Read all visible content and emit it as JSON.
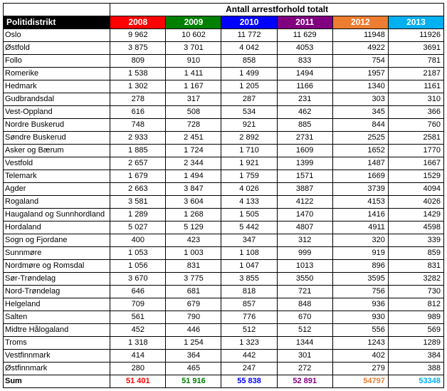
{
  "table": {
    "super_header": "Antall arrestforhold totalt",
    "row_header_title": "Politidistrikt",
    "row_header_bg": "#000000",
    "sum_label": "Sum",
    "background_color": "#ffffff",
    "border_color": "#000000",
    "font_size_body": 11,
    "font_size_header": 12,
    "years": [
      {
        "label": "2008",
        "bg": "#ff0000",
        "sum": "51 401",
        "sum_color": "#ff0000",
        "align": "center"
      },
      {
        "label": "2009",
        "bg": "#008000",
        "sum": "51 916",
        "sum_color": "#008000",
        "align": "center"
      },
      {
        "label": "2010",
        "bg": "#0000ff",
        "sum": "55 838",
        "sum_color": "#0000ff",
        "align": "center"
      },
      {
        "label": "2011",
        "bg": "#800080",
        "sum": "52 891",
        "sum_color": "#800080",
        "align": "center"
      },
      {
        "label": "2012",
        "bg": "#ed7d31",
        "sum": "54797",
        "sum_color": "#ed7d31",
        "align": "right"
      },
      {
        "label": "2013",
        "bg": "#00b0f0",
        "sum": "53348",
        "sum_color": "#00b0f0",
        "align": "right"
      }
    ],
    "rows": [
      {
        "district": "Oslo",
        "values": [
          "9 962",
          "10 602",
          "11 772",
          "11 629",
          "11948",
          "11926"
        ]
      },
      {
        "district": "Østfold",
        "values": [
          "3 875",
          "3 701",
          "4 042",
          "4053",
          "4922",
          "3691"
        ]
      },
      {
        "district": "Follo",
        "values": [
          "809",
          "910",
          "858",
          "833",
          "754",
          "781"
        ]
      },
      {
        "district": "Romerike",
        "values": [
          "1 538",
          "1 411",
          "1 499",
          "1494",
          "1957",
          "2187"
        ]
      },
      {
        "district": "Hedmark",
        "values": [
          "1 302",
          "1 167",
          "1 205",
          "1166",
          "1340",
          "1161"
        ]
      },
      {
        "district": "Gudbrandsdal",
        "values": [
          "278",
          "317",
          "287",
          "231",
          "303",
          "310"
        ]
      },
      {
        "district": "Vest-Oppland",
        "values": [
          "616",
          "508",
          "534",
          "462",
          "345",
          "366"
        ]
      },
      {
        "district": "Nordre Buskerud",
        "values": [
          "748",
          "728",
          "921",
          "885",
          "844",
          "760"
        ]
      },
      {
        "district": "Søndre Buskerud",
        "values": [
          "2 933",
          "2 451",
          "2 892",
          "2731",
          "2525",
          "2581"
        ]
      },
      {
        "district": "Asker og Bærum",
        "values": [
          "1 885",
          "1 724",
          "1 710",
          "1609",
          "1652",
          "1770"
        ]
      },
      {
        "district": "Vestfold",
        "values": [
          "2 657",
          "2 344",
          "1 921",
          "1399",
          "1487",
          "1667"
        ]
      },
      {
        "district": "Telemark",
        "values": [
          "1 679",
          "1 494",
          "1 759",
          "1571",
          "1669",
          "1529"
        ]
      },
      {
        "district": "Agder",
        "values": [
          "2 663",
          "3 847",
          "4 026",
          "3887",
          "3739",
          "4094"
        ]
      },
      {
        "district": "Rogaland",
        "values": [
          "3 581",
          "3 604",
          "4 133",
          "4122",
          "4153",
          "4026"
        ]
      },
      {
        "district": "Haugaland og Sunnhordland",
        "values": [
          "1 289",
          "1 268",
          "1 505",
          "1470",
          "1416",
          "1429"
        ]
      },
      {
        "district": "Hordaland",
        "values": [
          "5 027",
          "5 129",
          "5 442",
          "4807",
          "4911",
          "4598"
        ]
      },
      {
        "district": "Sogn og Fjordane",
        "values": [
          "400",
          "423",
          "347",
          "312",
          "320",
          "339"
        ]
      },
      {
        "district": "Sunnmøre",
        "values": [
          "1 053",
          "1 003",
          "1 108",
          "999",
          "919",
          "859"
        ]
      },
      {
        "district": "Nordmøre og Romsdal",
        "values": [
          "1 056",
          "831",
          "1 047",
          "1013",
          "896",
          "831"
        ]
      },
      {
        "district": "Sør-Trøndelag",
        "values": [
          "3 670",
          "3 775",
          "3 855",
          "3550",
          "3595",
          "3282"
        ]
      },
      {
        "district": "Nord-Trøndelag",
        "values": [
          "646",
          "681",
          "818",
          "721",
          "756",
          "730"
        ]
      },
      {
        "district": "Helgeland",
        "values": [
          "709",
          "679",
          "857",
          "848",
          "936",
          "812"
        ]
      },
      {
        "district": "Salten",
        "values": [
          "561",
          "790",
          "776",
          "670",
          "930",
          "989"
        ]
      },
      {
        "district": "Midtre Hålogaland",
        "values": [
          "452",
          "446",
          "512",
          "512",
          "556",
          "569"
        ]
      },
      {
        "district": "Troms",
        "values": [
          "1 318",
          "1 254",
          "1 323",
          "1344",
          "1243",
          "1289"
        ]
      },
      {
        "district": "Vestfinnmark",
        "values": [
          "414",
          "364",
          "442",
          "301",
          "402",
          "384"
        ]
      },
      {
        "district": "Østfinnmark",
        "values": [
          "280",
          "465",
          "247",
          "272",
          "279",
          "388"
        ]
      }
    ]
  }
}
